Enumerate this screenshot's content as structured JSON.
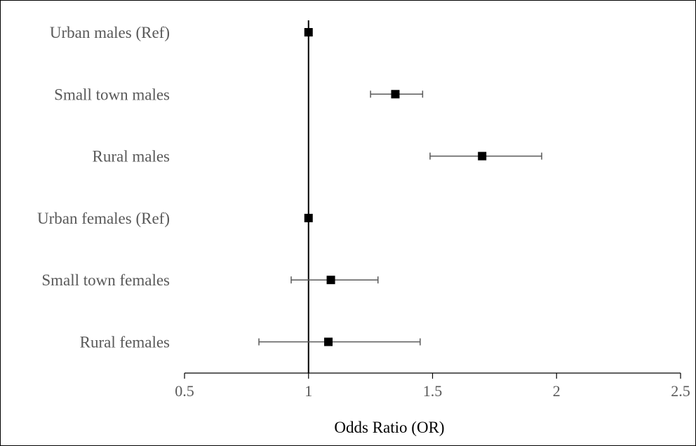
{
  "chart_data": {
    "type": "scatter",
    "subtype": "forest-plot",
    "title": "",
    "xlabel": "Odds Ratio (OR)",
    "ylabel": "",
    "xlim": [
      0.5,
      2.5
    ],
    "xticks": [
      0.5,
      1,
      1.5,
      2,
      2.5
    ],
    "xtick_labels": [
      "0.5",
      "1",
      "1.5",
      "2",
      "2.5"
    ],
    "reference_line": 1,
    "grid": false,
    "legend": "none",
    "categories": [
      "Urban males (Ref)",
      "Small town males",
      "Rural males",
      "Urban females (Ref)",
      "Small town females",
      "Rural females"
    ],
    "or": [
      1.0,
      1.35,
      1.7,
      1.0,
      1.09,
      1.08
    ],
    "ci_lower": [
      null,
      1.25,
      1.49,
      null,
      0.93,
      0.8
    ],
    "ci_upper": [
      null,
      1.46,
      1.94,
      null,
      1.28,
      1.45
    ],
    "colors": {
      "marker": "#000000",
      "errorbar": "#595959",
      "axis": "#000000"
    }
  }
}
